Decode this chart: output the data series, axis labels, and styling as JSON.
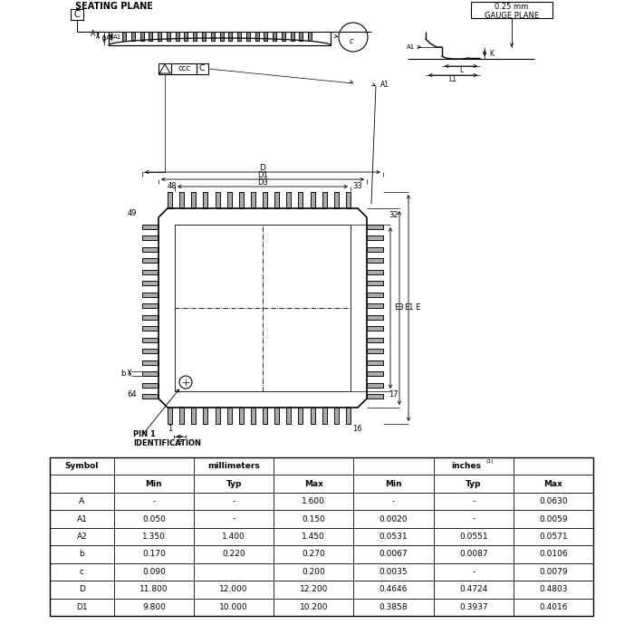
{
  "bg_color": "#ffffff",
  "line_color": "#000000",
  "table_data": {
    "rows": [
      [
        "A",
        "-",
        "-",
        "1.600",
        "-",
        "-",
        "0.0630"
      ],
      [
        "A1",
        "0.050",
        "-",
        "0.150",
        "0.0020",
        "-",
        "0.0059"
      ],
      [
        "A2",
        "1.350",
        "1.400",
        "1.450",
        "0.0531",
        "0.0551",
        "0.0571"
      ],
      [
        "b",
        "0.170",
        "0.220",
        "0.270",
        "0.0067",
        "0.0087",
        "0.0106"
      ],
      [
        "c",
        "0.090",
        "",
        "0.200",
        "0.0035",
        "-",
        "0.0079"
      ],
      [
        "D",
        "11.800",
        "12.000",
        "12.200",
        "0.4646",
        "0.4724",
        "0.4803"
      ],
      [
        "D1",
        "9.800",
        "10.000",
        "10.200",
        "0.3858",
        "0.3937",
        "0.4016"
      ]
    ]
  }
}
